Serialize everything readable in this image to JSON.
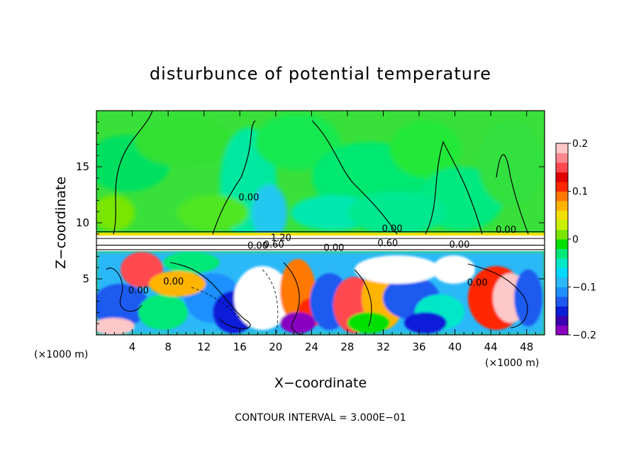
{
  "chart_data": {
    "type": "heatmap",
    "title": "disturbunce of potential temperature",
    "xlabel": "X−coordinate",
    "ylabel": "Z−coordinate",
    "x_unit": "(×1000 m)",
    "x_unit_right": "(×1000 m)",
    "xlim": [
      0,
      50
    ],
    "ylim": [
      0,
      20
    ],
    "x_ticks": [
      4,
      8,
      12,
      16,
      20,
      24,
      28,
      32,
      36,
      40,
      44,
      48
    ],
    "x_tick_labels": [
      "4",
      "8",
      "12",
      "16",
      "20",
      "24",
      "28",
      "32",
      "36",
      "40",
      "44",
      "48"
    ],
    "y_ticks": [
      5,
      10,
      15
    ],
    "y_tick_labels": [
      "5",
      "10",
      "15"
    ],
    "colorbar": {
      "range": [
        -0.2,
        0.2
      ],
      "tick_values": [
        0.2,
        0.1,
        0,
        -0.1,
        -0.2
      ],
      "tick_labels": [
        "0.2",
        "0.1",
        "0",
        "−0.1",
        "−0.2"
      ],
      "colors": [
        "#8a00c0",
        "#3b00b0",
        "#0a1ed8",
        "#1e5af0",
        "#1e90ff",
        "#2ab8f8",
        "#00d8ff",
        "#00e8c8",
        "#00e878",
        "#00e000",
        "#78e600",
        "#c8f000",
        "#f0e000",
        "#ffb400",
        "#ff7800",
        "#ff2800",
        "#e00000",
        "#ff4850",
        "#ff8890",
        "#ffc8c8"
      ]
    },
    "contour_labels": [
      {
        "text": "0.00",
        "x": 33.0,
        "y": 9.2
      },
      {
        "text": "0.00",
        "x": 45.7,
        "y": 9.1
      },
      {
        "text": "0.00",
        "x": 18.0,
        "y": 7.7
      },
      {
        "text": "0.60",
        "x": 19.8,
        "y": 7.8
      },
      {
        "text": "1.20",
        "x": 20.6,
        "y": 8.4
      },
      {
        "text": "0.60",
        "x": 32.5,
        "y": 7.9
      },
      {
        "text": "0.00",
        "x": 40.5,
        "y": 7.8
      },
      {
        "text": "0.00",
        "x": 4.7,
        "y": 3.7
      },
      {
        "text": "0.00",
        "x": 8.6,
        "y": 4.5
      },
      {
        "text": "0.00",
        "x": 42.5,
        "y": 4.4
      },
      {
        "text": "0.00",
        "x": 17.0,
        "y": 12.0
      },
      {
        "text": "0.00",
        "x": 26.5,
        "y": 7.5
      }
    ],
    "contour_interval_text": "CONTOUR INTERVAL = 3.000E−01",
    "legend": "right (colorbar)",
    "grid": false
  }
}
